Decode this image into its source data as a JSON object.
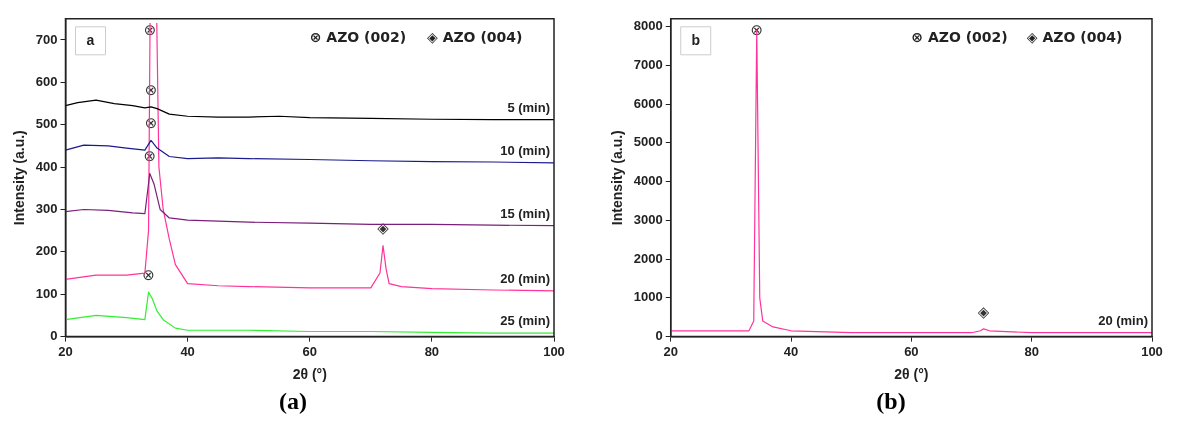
{
  "chart_data": [
    {
      "type": "line",
      "xlabel": "2θ (°)",
      "ylabel": "Intensity (a.u.)",
      "xlim": [
        20,
        100
      ],
      "xticks": [
        20,
        40,
        60,
        80,
        100
      ],
      "ylim": [
        0,
        750
      ],
      "yticks": [
        0,
        100,
        200,
        300,
        400,
        500,
        600,
        700
      ],
      "grid": false,
      "legend": false,
      "marker": "none",
      "series": [
        {
          "name": "5 (min)",
          "color": "#000000",
          "x": [
            20,
            22,
            25,
            28,
            31,
            33,
            34,
            35,
            37,
            40,
            45,
            50,
            55,
            60,
            70,
            80,
            90,
            100
          ],
          "values": [
            545,
            552,
            558,
            550,
            545,
            540,
            542,
            538,
            525,
            520,
            518,
            518,
            520,
            517,
            515,
            513,
            512,
            512
          ]
        },
        {
          "name": "10 (min)",
          "color": "#1a1a8c",
          "x": [
            20,
            23,
            27,
            30,
            33,
            34,
            35,
            37,
            40,
            45,
            50,
            60,
            70,
            80,
            90,
            100
          ],
          "values": [
            440,
            452,
            450,
            445,
            440,
            463,
            445,
            425,
            420,
            422,
            420,
            418,
            415,
            413,
            412,
            410
          ]
        },
        {
          "name": "15 (min)",
          "color": "#7a1f7a",
          "x": [
            20,
            23,
            27,
            31,
            33,
            33.8,
            34.5,
            35.5,
            37,
            40,
            50,
            60,
            70,
            80,
            90,
            100
          ],
          "values": [
            295,
            300,
            298,
            292,
            290,
            385,
            360,
            300,
            280,
            275,
            270,
            268,
            265,
            265,
            263,
            262
          ]
        },
        {
          "name": "20 (min)",
          "color": "#ff3399",
          "x": [
            20,
            25,
            30,
            33,
            33.6,
            33.85,
            34.4,
            34.95,
            35.3,
            36,
            37,
            38,
            40,
            45,
            50,
            60,
            70,
            71.5,
            72,
            72.5,
            73,
            75,
            80,
            90,
            100
          ],
          "values": [
            135,
            145,
            145,
            150,
            250,
            740,
            null,
            740,
            400,
            300,
            230,
            170,
            125,
            120,
            118,
            115,
            115,
            150,
            215,
            160,
            125,
            118,
            113,
            110,
            108
          ]
        },
        {
          "name": "25 (min)",
          "color": "#33ee33",
          "x": [
            20,
            25,
            30,
            33,
            33.6,
            34.2,
            35,
            36,
            38,
            40,
            50,
            60,
            70,
            80,
            90,
            100
          ],
          "values": [
            40,
            50,
            45,
            40,
            105,
            90,
            60,
            40,
            20,
            15,
            15,
            12,
            12,
            10,
            8,
            8
          ]
        }
      ],
      "annotations": [
        "a",
        "⊗ AZO (002)",
        "◈ AZO (004)",
        {
          "text": "⊗",
          "x": 33.85,
          "y": 740
        },
        {
          "text": "⊗",
          "x": 34,
          "y": 542
        },
        {
          "text": "⊗",
          "x": 34,
          "y": 463
        },
        {
          "text": "⊗",
          "x": 33.8,
          "y": 385
        },
        {
          "text": "⊗",
          "x": 33.6,
          "y": 105
        },
        {
          "text": "◈",
          "x": 72,
          "y": 215
        },
        "(a)"
      ]
    },
    {
      "type": "line",
      "xlabel": "2θ (°)",
      "ylabel": "Intensity (a.u.)",
      "xlim": [
        20,
        100
      ],
      "xticks": [
        20,
        40,
        60,
        80,
        100
      ],
      "ylim": [
        0,
        8200
      ],
      "yticks": [
        0,
        1000,
        2000,
        3000,
        4000,
        5000,
        6000,
        7000,
        8000
      ],
      "grid": false,
      "legend": false,
      "marker": "none",
      "series": [
        {
          "name": "20 (min)",
          "color": "#ff3399",
          "x": [
            20,
            30,
            33,
            33.8,
            34.3,
            34.8,
            35.3,
            37,
            40,
            50,
            60,
            70,
            71.5,
            72,
            73,
            80,
            90,
            100
          ],
          "values": [
            150,
            150,
            150,
            400,
            7900,
            1000,
            400,
            250,
            150,
            100,
            100,
            100,
            150,
            200,
            150,
            100,
            100,
            100
          ]
        }
      ],
      "annotations": [
        "b",
        "⊗ AZO (002)",
        "◈ AZO (004)",
        {
          "text": "⊗",
          "x": 34.3,
          "y": 7900
        },
        {
          "text": "◈",
          "x": 72,
          "y": 200
        },
        "(b)"
      ]
    }
  ]
}
